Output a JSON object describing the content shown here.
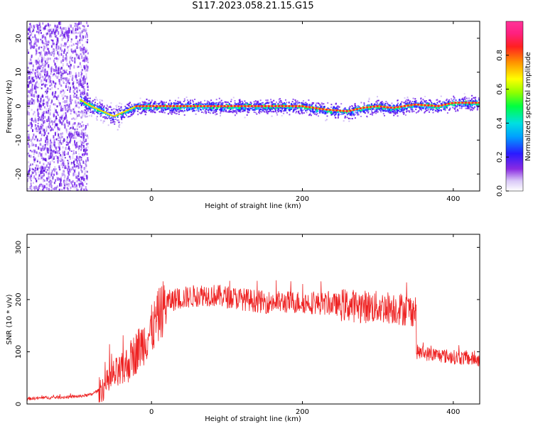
{
  "title": "S117.2023.058.21.15.G15",
  "colors": {
    "trace": "#ee2222",
    "scatter": "#6a1ae8",
    "center": "#ff2a2a"
  },
  "chart_data": [
    {
      "type": "heatmap",
      "panel": "top",
      "xlabel": "Height of straight line (km)",
      "ylabel": "Frequency (Hz)",
      "xlim": [
        -165,
        435
      ],
      "ylim": [
        -25,
        25
      ],
      "xticks": [
        0,
        200,
        400
      ],
      "yticks": [
        -20,
        -10,
        0,
        10,
        20
      ],
      "colorbar": {
        "label": "Normalized spectral amplitude",
        "range": [
          0.0,
          1.0
        ],
        "ticks": [
          "0.0",
          "0.2",
          "0.4",
          "0.6",
          "0.8"
        ],
        "colormap": "rainbow"
      },
      "ridge": {
        "x": [
          -95,
          -80,
          -70,
          -60,
          -50,
          -40,
          -30,
          -20,
          -10,
          0,
          50,
          100,
          150,
          200,
          230,
          260,
          280,
          300,
          320,
          350,
          380,
          400,
          420,
          435
        ],
        "y": [
          2,
          0,
          -1,
          -2,
          -3,
          -2,
          -1,
          0,
          0,
          0,
          0,
          0,
          0,
          0,
          -1,
          -1.5,
          -0.5,
          0,
          -0.5,
          0.5,
          0,
          1,
          1,
          1
        ]
      },
      "noise_region_x": [
        -165,
        -95
      ]
    },
    {
      "type": "line",
      "panel": "bottom",
      "xlabel": "Height of straight line (km)",
      "ylabel": "SNR (10 * v/v)",
      "xlim": [
        -165,
        435
      ],
      "ylim": [
        0,
        325
      ],
      "xticks": [
        0,
        200,
        400
      ],
      "yticks": [
        0,
        100,
        200,
        300
      ],
      "series": [
        {
          "x": [
            -165,
            -140,
            -120,
            -100,
            -80,
            -60,
            -50,
            -40,
            -30,
            -20,
            0,
            10,
            20,
            30,
            50,
            70,
            100,
            150,
            200,
            250,
            300,
            320,
            340,
            350,
            351,
            370,
            400,
            435
          ],
          "y": [
            10,
            12,
            13,
            14,
            18,
            35,
            55,
            60,
            80,
            100,
            140,
            170,
            195,
            200,
            205,
            210,
            205,
            195,
            195,
            190,
            185,
            185,
            180,
            180,
            100,
            95,
            90,
            85
          ]
        }
      ]
    }
  ]
}
